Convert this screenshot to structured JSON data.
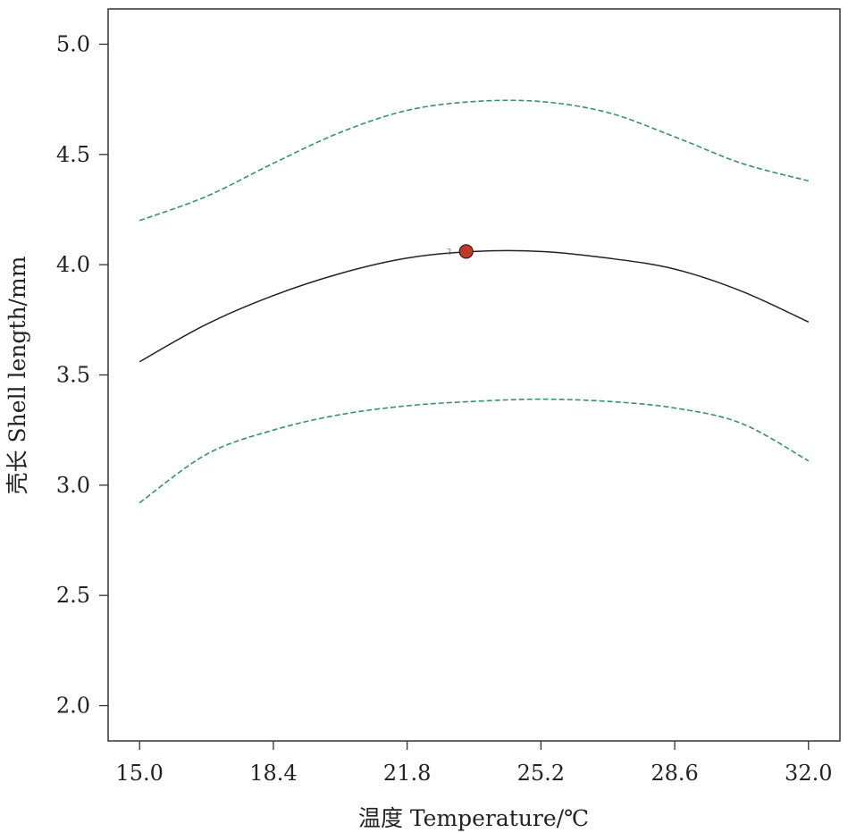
{
  "chart_data": {
    "type": "line",
    "title": "",
    "xlabel": "温度 Temperature/℃",
    "ylabel": "壳长 Shell length/mm",
    "xlim": [
      14.2,
      32.8
    ],
    "ylim": [
      1.84,
      5.16
    ],
    "x_ticks": [
      "15.0",
      "18.4",
      "21.8",
      "25.2",
      "28.6",
      "32.0"
    ],
    "y_ticks": [
      "2.0",
      "2.5",
      "3.0",
      "3.5",
      "4.0",
      "4.5",
      "5.0"
    ],
    "grid": false,
    "legend": "none",
    "series": [
      {
        "role": "fit",
        "color": "#222222",
        "style": "solid",
        "x": [
          15.0,
          16.7,
          18.4,
          20.1,
          21.8,
          23.5,
          25.2,
          26.9,
          28.6,
          30.3,
          32.0
        ],
        "y": [
          3.56,
          3.73,
          3.86,
          3.96,
          4.03,
          4.06,
          4.06,
          4.03,
          3.98,
          3.88,
          3.74
        ]
      },
      {
        "role": "upper-bound",
        "color": "#3a8f6e",
        "style": "dashed",
        "x": [
          15.0,
          16.7,
          18.4,
          20.1,
          21.8,
          23.5,
          25.2,
          26.9,
          28.6,
          30.3,
          32.0
        ],
        "y": [
          4.2,
          4.31,
          4.46,
          4.6,
          4.7,
          4.74,
          4.74,
          4.69,
          4.58,
          4.46,
          4.38
        ]
      },
      {
        "role": "lower-bound",
        "color": "#3a8f6e",
        "style": "dashed",
        "x": [
          15.0,
          16.7,
          18.4,
          20.1,
          21.8,
          23.5,
          25.2,
          26.9,
          28.6,
          30.3,
          32.0
        ],
        "y": [
          2.92,
          3.14,
          3.25,
          3.32,
          3.36,
          3.38,
          3.39,
          3.38,
          3.35,
          3.28,
          3.11
        ]
      }
    ],
    "points": [
      {
        "x": 23.3,
        "y": 4.06,
        "label": "2",
        "color": "#c0392b"
      }
    ]
  }
}
